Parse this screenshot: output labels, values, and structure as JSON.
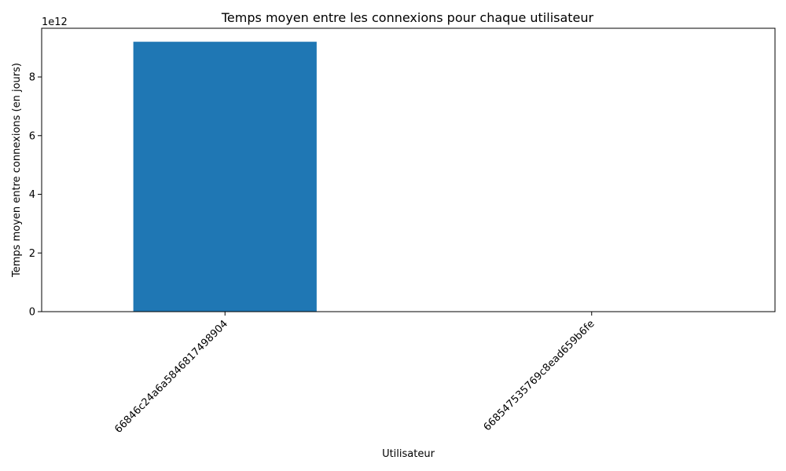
{
  "chart_data": {
    "type": "bar",
    "title": "Temps moyen entre les connexions pour chaque utilisateur",
    "xlabel": "Utilisateur",
    "ylabel": "Temps moyen entre connexions (en jours)",
    "y_offset_label": "1e12",
    "y_scale_factor": 1000000000000,
    "categories": [
      "66846c24a6a5846817498904",
      "668547535769c8ead659b6fe"
    ],
    "values": [
      9200000000000,
      0
    ],
    "ylim": [
      0,
      9660000000000
    ],
    "yticks": [
      0,
      2000000000000,
      4000000000000,
      6000000000000,
      8000000000000
    ],
    "ytick_labels": [
      "0",
      "2",
      "4",
      "6",
      "8"
    ],
    "xtick_rotation": 45,
    "grid": false,
    "legend": "none",
    "colors": {
      "bar": "#1f77b4",
      "axes": "#000000",
      "background": "#ffffff"
    }
  }
}
